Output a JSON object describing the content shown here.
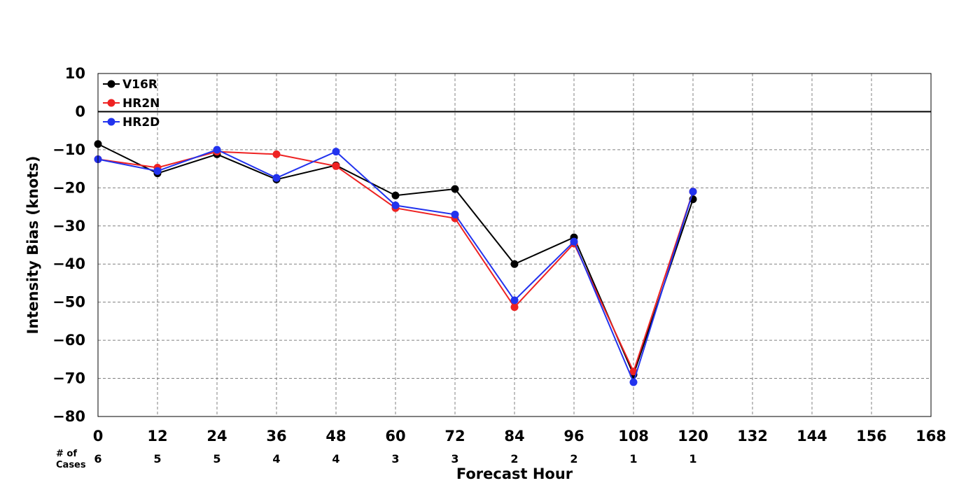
{
  "chart_data": {
    "type": "line",
    "xlabel": "Forecast Hour",
    "ylabel": "Intensity Bias (knots)",
    "xlim": [
      0,
      168
    ],
    "ylim": [
      -80,
      10
    ],
    "x_ticks": [
      0,
      12,
      24,
      36,
      48,
      60,
      72,
      84,
      96,
      108,
      120,
      132,
      144,
      156,
      168
    ],
    "y_ticks": [
      10,
      0,
      -10,
      -20,
      -30,
      -40,
      -50,
      -60,
      -70,
      -80
    ],
    "x_tick_labels": [
      "0",
      "12",
      "24",
      "36",
      "48",
      "60",
      "72",
      "84",
      "96",
      "108",
      "120",
      "132",
      "144",
      "156",
      "168"
    ],
    "y_tick_labels": [
      "10",
      "0",
      "−10",
      "−20",
      "−30",
      "−40",
      "−50",
      "−60",
      "−70",
      "−80"
    ],
    "grid": true,
    "zero_line": true,
    "legend_position": "top-left",
    "x": [
      0,
      12,
      24,
      36,
      48,
      60,
      72,
      84,
      96,
      108,
      120
    ],
    "series": [
      {
        "name": "V16R",
        "color": "#000000",
        "values": [
          -8.5,
          -16.2,
          -11.2,
          -17.8,
          -14.1,
          -22.0,
          -20.3,
          -40.0,
          -33.0,
          -69.0,
          -23.0
        ]
      },
      {
        "name": "HR2N",
        "color": "#ee2222",
        "values": [
          -12.5,
          -14.7,
          -10.5,
          -11.2,
          -14.3,
          -25.3,
          -28.0,
          -51.3,
          -34.6,
          -68.2,
          -21.0
        ]
      },
      {
        "name": "HR2D",
        "color": "#2233ee",
        "values": [
          -12.5,
          -15.6,
          -10.0,
          -17.4,
          -10.5,
          -24.6,
          -27.0,
          -49.5,
          -34.1,
          -71.0,
          -21.0
        ]
      }
    ],
    "cases_label": [
      "# of",
      "Cases"
    ],
    "case_counts": [
      "6",
      "5",
      "5",
      "4",
      "4",
      "3",
      "3",
      "2",
      "2",
      "1",
      "1"
    ]
  }
}
